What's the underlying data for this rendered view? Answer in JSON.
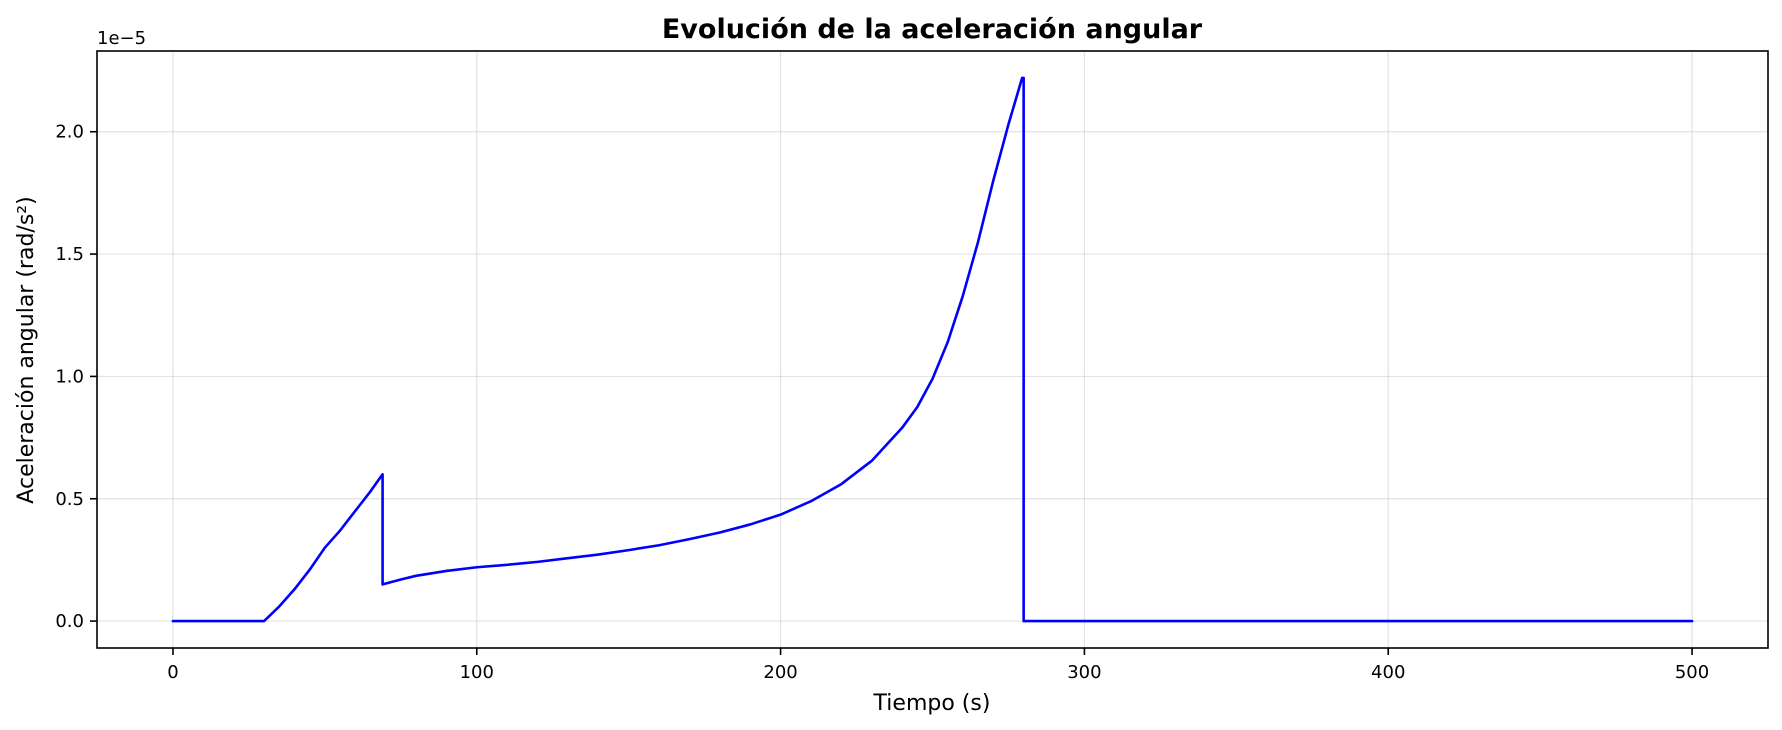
{
  "chart_data": {
    "type": "line",
    "title": "Evolución de la aceleración angular",
    "xlabel": "Tiempo (s)",
    "ylabel": "Aceleración angular (rad/s²)",
    "offset_text": "1e−5",
    "xlim": [
      -25,
      525
    ],
    "ylim": [
      -0.11,
      2.33
    ],
    "y_scale_exponent": -5,
    "grid": true,
    "x_ticks": [
      0,
      100,
      200,
      300,
      400,
      500
    ],
    "x_tick_labels": [
      "0",
      "100",
      "200",
      "300",
      "400",
      "500"
    ],
    "y_ticks": [
      0.0,
      0.5,
      1.0,
      1.5,
      2.0
    ],
    "y_tick_labels": [
      "0.0",
      "0.5",
      "1.0",
      "1.5",
      "2.0"
    ],
    "series": [
      {
        "name": "aceleración angular",
        "color": "#0000ff",
        "x": [
          0,
          30,
          35,
          40,
          45,
          50,
          55,
          60,
          65,
          69,
          69,
          75,
          80,
          90,
          100,
          110,
          120,
          130,
          140,
          150,
          160,
          170,
          180,
          190,
          200,
          210,
          220,
          230,
          240,
          245,
          250,
          255,
          260,
          265,
          270,
          275,
          279.5,
          280,
          280,
          300,
          400,
          500
        ],
        "y": [
          0.0,
          0.0,
          0.06,
          0.13,
          0.21,
          0.3,
          0.37,
          0.45,
          0.53,
          0.6,
          0.15,
          0.17,
          0.185,
          0.205,
          0.22,
          0.23,
          0.242,
          0.257,
          0.272,
          0.29,
          0.31,
          0.335,
          0.362,
          0.395,
          0.435,
          0.49,
          0.56,
          0.655,
          0.79,
          0.875,
          0.99,
          1.14,
          1.33,
          1.55,
          1.8,
          2.03,
          2.22,
          2.22,
          0.0,
          0.0,
          0.0,
          0.0
        ]
      }
    ]
  }
}
